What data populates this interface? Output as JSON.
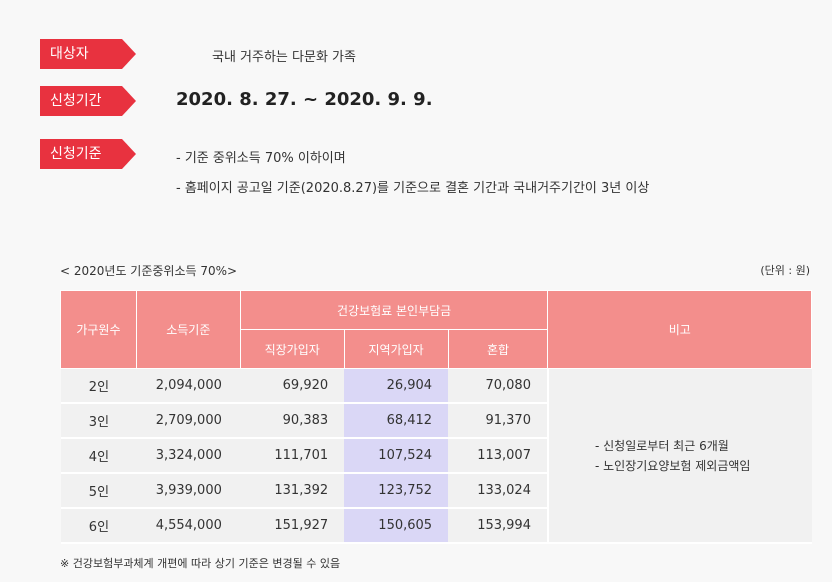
{
  "info": {
    "target_label": "대상자",
    "target_value": "국내 거주하는 다문화 가족",
    "period_label": "신청기간",
    "period_value": "2020. 8. 27. ~ 2020. 9. 9.",
    "criteria_label": "신청기준",
    "criteria_line1": "- 기준 중위소득 70% 이하이며",
    "criteria_line2": "- 홈페이지 공고일 기준(2020.8.27)를 기준으로 결혼 기간과 국내거주기간이 3년 이상"
  },
  "table": {
    "caption": "< 2020년도 기준중위소득 70%>",
    "unit": "(단위 : 원)",
    "headers": {
      "household": "가구원수",
      "income": "소득기준",
      "insurance": "건강보험료 본인부담금",
      "employee": "직장가입자",
      "regional": "지역가입자",
      "mixed": "혼합",
      "remarks": "비고"
    },
    "rows": [
      {
        "household": "2인",
        "income": "2,094,000",
        "employee": "69,920",
        "regional": "26,904",
        "mixed": "70,080"
      },
      {
        "household": "3인",
        "income": "2,709,000",
        "employee": "90,383",
        "regional": "68,412",
        "mixed": "91,370"
      },
      {
        "household": "4인",
        "income": "3,324,000",
        "employee": "111,701",
        "regional": "107,524",
        "mixed": "113,007"
      },
      {
        "household": "5인",
        "income": "3,939,000",
        "employee": "131,392",
        "regional": "123,752",
        "mixed": "133,024"
      },
      {
        "household": "6인",
        "income": "4,554,000",
        "employee": "151,927",
        "regional": "150,605",
        "mixed": "153,994"
      }
    ],
    "remarks_line1": "- 신청일로부터 최근 6개월",
    "remarks_line2": "- 노인장기요양보험 제외금액임"
  },
  "footnote": "※ 건강보험부과체계 개편에 따라 상기 기준은 변경될 수 있음"
}
